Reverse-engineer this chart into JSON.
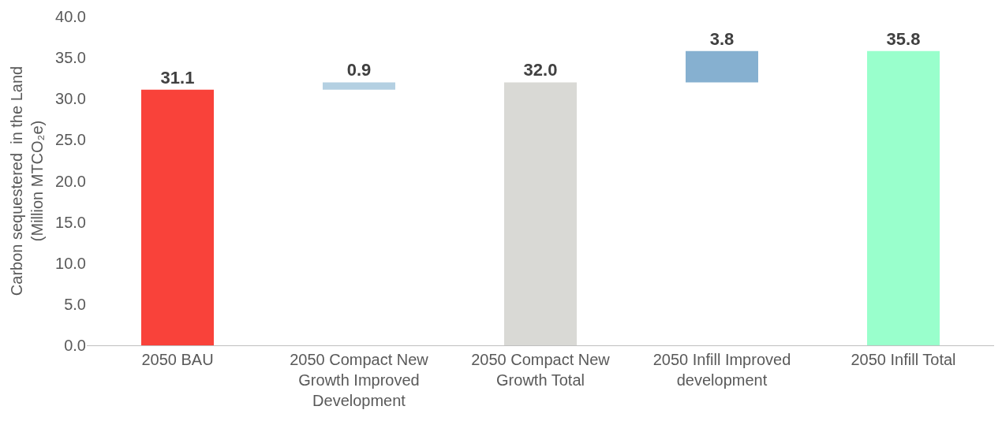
{
  "chart_data": {
    "type": "bar",
    "ylabel": "Carbon sequestered  in the Land\n(Million MTCO₂e)",
    "categories": [
      "2050 BAU",
      "2050 Compact New Growth Improved Development",
      "2050 Compact New Growth Total",
      "2050 Infill Improved development",
      "2050 Infill Total"
    ],
    "values": [
      31.1,
      0.9,
      32.0,
      3.8,
      35.8
    ],
    "base": [
      0,
      31.1,
      0,
      32.0,
      0
    ],
    "colors": [
      "#f9423a",
      "#b4d0e2",
      "#d9d9d5",
      "#86b0d0",
      "#99ffcc"
    ],
    "value_labels": [
      "31.1",
      "0.9",
      "32.0",
      "3.8",
      "35.8"
    ],
    "ylim": [
      0,
      40
    ],
    "yticks": [
      {
        "value": 0,
        "label": "0.0"
      },
      {
        "value": 5,
        "label": "5.0"
      },
      {
        "value": 10,
        "label": "10.0"
      },
      {
        "value": 15,
        "label": "15.0"
      },
      {
        "value": 20,
        "label": "20.0"
      },
      {
        "value": 25,
        "label": "25.0"
      },
      {
        "value": 30,
        "label": "30.0"
      },
      {
        "value": 35,
        "label": "35.0"
      },
      {
        "value": 40,
        "label": "40.0"
      }
    ],
    "grid": false
  }
}
